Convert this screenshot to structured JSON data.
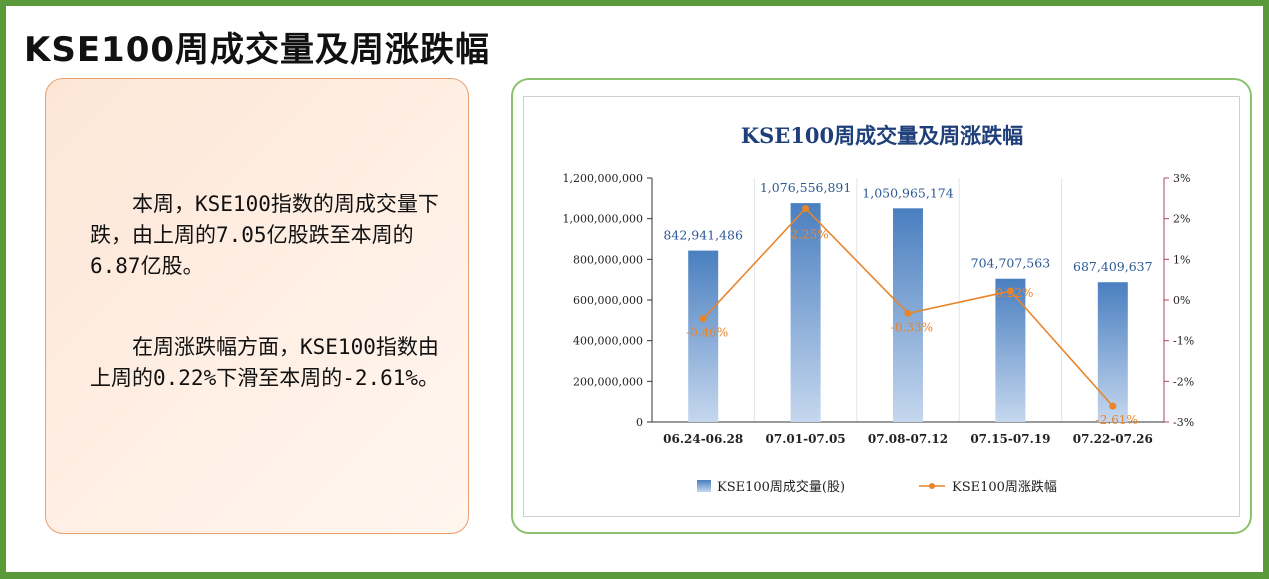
{
  "page": {
    "title": "KSE100周成交量及周涨跌幅"
  },
  "text_panel": {
    "paragraph1": "　　本周，KSE100指数的周成交量下跌，由上周的7.05亿股跌至本周的6.87亿股。",
    "paragraph2": "　　在周涨跌幅方面，KSE100指数由上周的0.22%下滑至本周的-2.61%。"
  },
  "colors": {
    "frame": "#5a9a3a",
    "bar_top": "#4a7fc0",
    "bar_bottom": "#c5d7ee",
    "line": "#e8852a",
    "chart_title": "#1f3f7a",
    "right_axis": "#b0445a"
  },
  "chart_data": {
    "type": "bar",
    "title": "KSE100周成交量及周涨跌幅",
    "categories": [
      "06.24-06.28",
      "07.01-07.05",
      "07.08-07.12",
      "07.15-07.19",
      "07.22-07.26"
    ],
    "series": [
      {
        "name": "KSE100周成交量(股)",
        "type": "bar",
        "axis": "left",
        "values": [
          842941486,
          1076556891,
          1050965174,
          704707563,
          687409637
        ],
        "labels": [
          "842,941,486",
          "1,076,556,891",
          "1,050,965,174",
          "704,707,563",
          "687,409,637"
        ]
      },
      {
        "name": "KSE100周涨跌幅",
        "type": "line",
        "axis": "right",
        "values": [
          -0.46,
          2.25,
          -0.33,
          0.22,
          -2.61
        ],
        "labels": [
          "-0.46%",
          "2.25%",
          "-0.33%",
          "0.22%",
          "-2.61%"
        ]
      }
    ],
    "y_left": {
      "ylim": [
        0,
        1200000000
      ],
      "ticks": [
        0,
        200000000,
        400000000,
        600000000,
        800000000,
        1000000000,
        1200000000
      ],
      "tick_labels": [
        "0",
        "200,000,000",
        "400,000,000",
        "600,000,000",
        "800,000,000",
        "1,000,000,000",
        "1,200,000,000"
      ]
    },
    "y_right": {
      "ylim": [
        -3,
        3
      ],
      "ticks": [
        -3,
        -2,
        -1,
        0,
        1,
        2,
        3
      ],
      "tick_labels": [
        "-3%",
        "-2%",
        "-1%",
        "0%",
        "1%",
        "2%",
        "3%"
      ]
    },
    "legend_position": "bottom",
    "grid": "vertical"
  }
}
